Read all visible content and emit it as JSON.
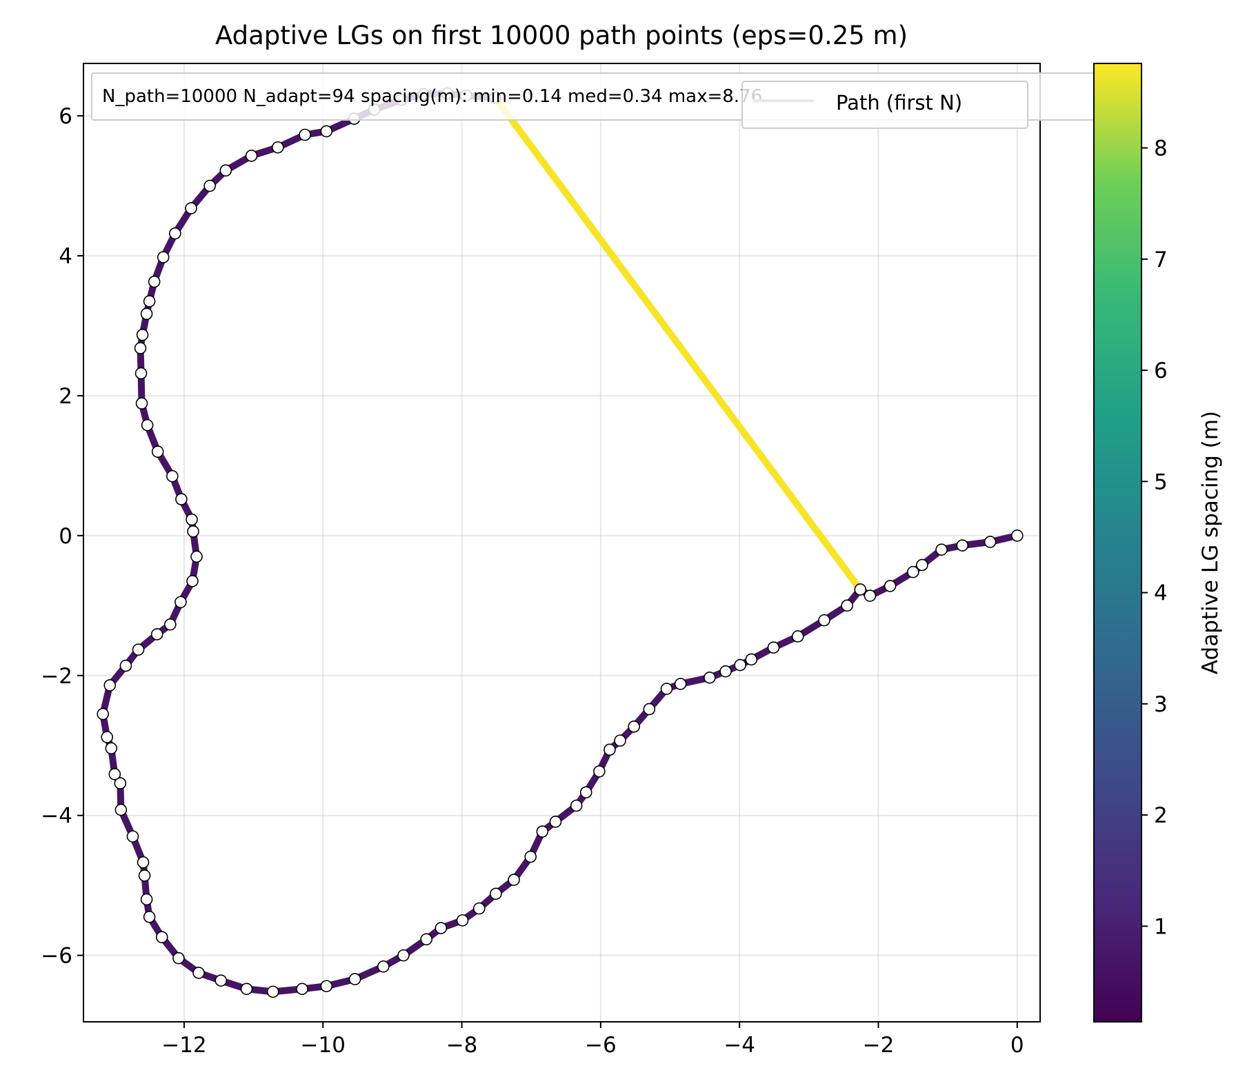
{
  "chart_data": {
    "type": "line",
    "title": "Adaptive LGs on first 10000 path points (eps=0.25 m)",
    "xlabel": "",
    "ylabel": "",
    "xlim": [
      -13.45,
      0.33
    ],
    "ylim": [
      -6.95,
      6.75
    ],
    "x_ticks": [
      -12,
      -10,
      -8,
      -6,
      -4,
      -2,
      0
    ],
    "y_ticks": [
      -6,
      -4,
      -2,
      0,
      2,
      4,
      6
    ],
    "x_tick_labels": [
      "−12",
      "−10",
      "−8",
      "−6",
      "−4",
      "−2",
      "0"
    ],
    "y_tick_labels": [
      "−6",
      "−4",
      "−2",
      "0",
      "2",
      "4",
      "6"
    ],
    "grid": true,
    "annotation": "N_path=10000  N_adapt=94  spacing(m): min=0.14  med=0.34  max=8.76",
    "legend": {
      "position": "top-right",
      "entries": [
        "Path (first N)"
      ]
    },
    "colorbar": {
      "label": "Adaptive LG spacing (m)",
      "range": [
        0.14,
        8.76
      ],
      "ticks": [
        1,
        2,
        3,
        4,
        5,
        6,
        7,
        8
      ],
      "tick_labels": [
        "1",
        "2",
        "3",
        "4",
        "5",
        "6",
        "7",
        "8"
      ],
      "colormap": "viridis"
    },
    "series": [
      {
        "name": "Path (first N)",
        "path_color": "#e8e8e8",
        "segment_color_low": "#471465",
        "segment_color_high": "#f7e426",
        "x": [
          0.0,
          -0.39,
          -0.79,
          -1.09,
          -1.37,
          -1.5,
          -1.83,
          -2.12,
          -2.26
        ],
        "y": [
          0.0,
          -0.09,
          -0.14,
          -0.2,
          -0.42,
          -0.52,
          -0.72,
          -0.86,
          -0.77
        ]
      },
      {
        "name": "Adaptive LGs",
        "marker_color": "#ffffff",
        "x": [
          0.0,
          -0.39,
          -0.79,
          -1.09,
          -1.37,
          -1.5,
          -1.83,
          -2.12,
          -2.26,
          -2.45,
          -2.78,
          -3.16,
          -3.51,
          -3.83,
          -3.99,
          -4.2,
          -4.43,
          -4.85,
          -5.05,
          -5.3,
          -5.52,
          -5.72,
          -5.87,
          -6.02,
          -6.21,
          -6.35,
          -6.65,
          -6.84,
          -7.01,
          -7.25,
          -7.51,
          -7.75,
          -7.99,
          -8.3,
          -8.51,
          -8.84,
          -9.13,
          -9.54,
          -9.95,
          -10.3,
          -10.72,
          -11.1,
          -11.47,
          -11.79,
          -12.08,
          -12.32,
          -12.5,
          -12.54,
          -12.57,
          -12.59,
          -12.74,
          -12.91,
          -12.92,
          -13.0,
          -13.05,
          -13.11,
          -13.17,
          -13.07,
          -12.84,
          -12.66,
          -12.39,
          -12.2,
          -12.05,
          -11.88,
          -11.82,
          -11.87,
          -11.89,
          -12.04,
          -12.17,
          -12.38,
          -12.53,
          -12.61,
          -12.62,
          -12.63,
          -12.6,
          -12.54,
          -12.5,
          -12.43,
          -12.3,
          -12.13,
          -11.9,
          -11.63,
          -11.4,
          -11.03,
          -10.65,
          -10.26,
          -9.95,
          -9.55,
          -9.26,
          -8.87,
          -8.55,
          -8.21,
          -7.94,
          -7.52
        ],
        "y": [
          0.0,
          -0.09,
          -0.14,
          -0.2,
          -0.42,
          -0.52,
          -0.72,
          -0.86,
          -0.77,
          -1.0,
          -1.21,
          -1.44,
          -1.6,
          -1.77,
          -1.85,
          -1.94,
          -2.03,
          -2.12,
          -2.19,
          -2.48,
          -2.73,
          -2.93,
          -3.06,
          -3.37,
          -3.67,
          -3.86,
          -4.09,
          -4.23,
          -4.59,
          -4.92,
          -5.12,
          -5.33,
          -5.5,
          -5.61,
          -5.77,
          -6.0,
          -6.16,
          -6.34,
          -6.44,
          -6.48,
          -6.52,
          -6.48,
          -6.36,
          -6.25,
          -6.04,
          -5.74,
          -5.45,
          -5.2,
          -4.86,
          -4.67,
          -4.3,
          -3.92,
          -3.54,
          -3.41,
          -3.04,
          -2.88,
          -2.55,
          -2.14,
          -1.86,
          -1.63,
          -1.41,
          -1.27,
          -0.95,
          -0.65,
          -0.3,
          0.06,
          0.23,
          0.52,
          0.85,
          1.2,
          1.58,
          1.89,
          2.32,
          2.68,
          2.87,
          3.17,
          3.35,
          3.63,
          3.98,
          4.32,
          4.68,
          5.0,
          5.22,
          5.43,
          5.55,
          5.73,
          5.78,
          5.96,
          6.09,
          6.23,
          6.31,
          6.32,
          6.29,
          6.26
        ]
      }
    ]
  }
}
